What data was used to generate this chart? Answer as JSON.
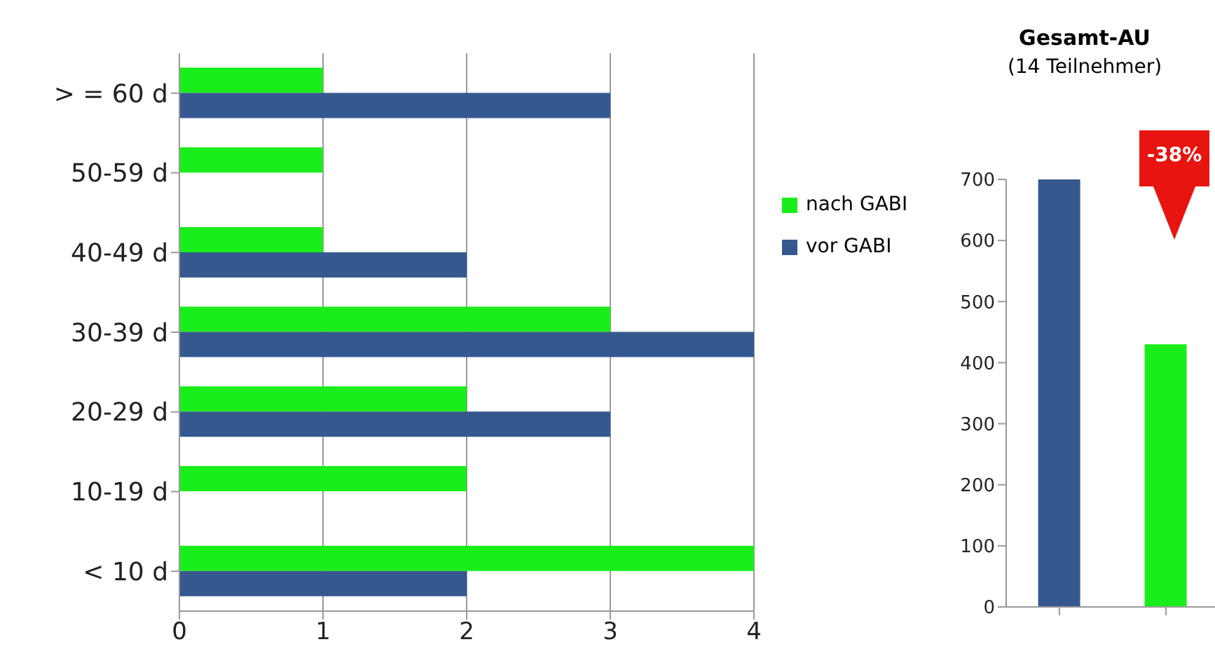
{
  "chart_data": [
    {
      "type": "bar",
      "orientation": "horizontal",
      "categories": [
        "> = 60 d",
        "50-59 d",
        "40-49 d",
        "30-39 d",
        "20-29 d",
        "10-19 d",
        "< 10 d"
      ],
      "series": [
        {
          "name": "nach GABI",
          "color": "#1aee1a",
          "values": [
            1,
            1,
            1,
            3,
            2,
            2,
            4
          ]
        },
        {
          "name": "vor GABI",
          "color": "#35598f",
          "values": [
            3,
            0,
            2,
            4,
            3,
            0,
            2
          ]
        }
      ],
      "xlim": [
        0,
        4
      ],
      "xticks": [
        0,
        1,
        2,
        3,
        4
      ],
      "grid": "x",
      "legend": "right"
    },
    {
      "type": "bar",
      "title": "Gesamt-AU",
      "subtitle": "(14 Teilnehmer)",
      "categories": [
        null,
        null
      ],
      "values": [
        700,
        430
      ],
      "colors": [
        "#35598f",
        "#1aee1a"
      ],
      "ylim": [
        0,
        700
      ],
      "yticks": [
        0,
        100,
        200,
        300,
        400,
        500,
        600,
        700
      ],
      "annotations": [
        "-38%"
      ]
    }
  ]
}
